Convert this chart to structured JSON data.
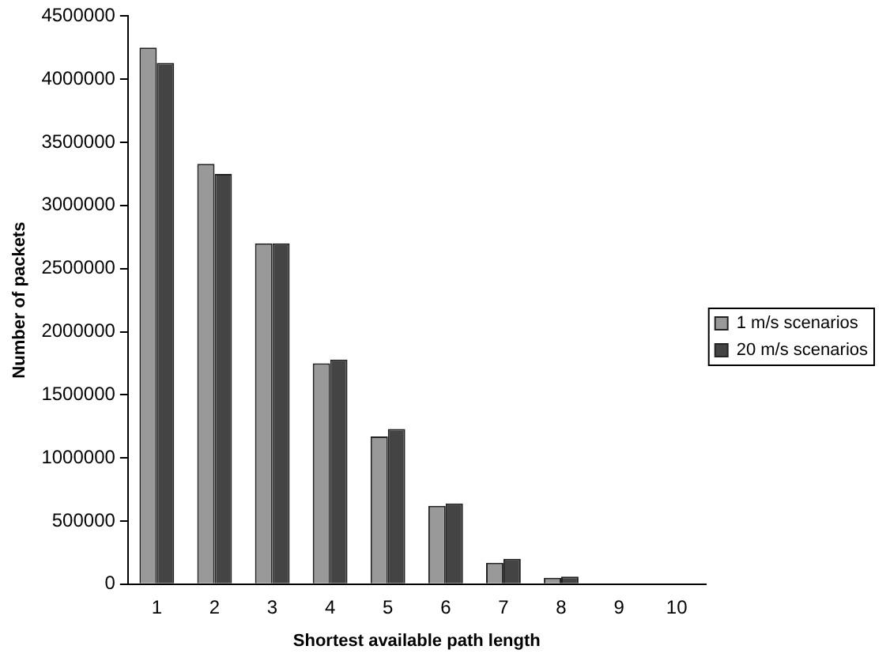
{
  "chart_data": {
    "type": "bar",
    "xlabel": "Shortest available path length",
    "ylabel": "Number of packets",
    "categories": [
      "1",
      "2",
      "3",
      "4",
      "5",
      "6",
      "7",
      "8",
      "9",
      "10"
    ],
    "series": [
      {
        "name": "1 m/s scenarios",
        "color": "#999999",
        "values": [
          4250000,
          3330000,
          2700000,
          1750000,
          1170000,
          620000,
          170000,
          50000,
          0,
          0
        ]
      },
      {
        "name": "20 m/s scenarios",
        "color": "#444444",
        "values": [
          4130000,
          3250000,
          2700000,
          1780000,
          1230000,
          640000,
          200000,
          60000,
          0,
          0
        ]
      }
    ],
    "ylim": [
      0,
      4500000
    ],
    "yticks": [
      0,
      500000,
      1000000,
      1500000,
      2000000,
      2500000,
      3000000,
      3500000,
      4000000,
      4500000
    ],
    "grid": false,
    "legend": "right"
  }
}
